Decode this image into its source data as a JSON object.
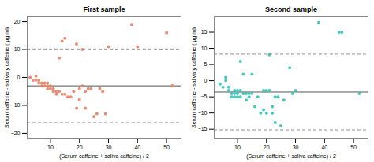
{
  "chart_data": [
    {
      "type": "scatter",
      "title": "First sample",
      "xlabel": "(Serum caffeine + saliva caffeine) / 2",
      "ylabel": "Serum caffeine - salivary caffeine ( µg ml)",
      "color": "#e0846a",
      "x": [
        3,
        4,
        5,
        5,
        6,
        6,
        7,
        7,
        8,
        8,
        9,
        9,
        9,
        10,
        10,
        11,
        11,
        12,
        12,
        13,
        13,
        14,
        14,
        15,
        15,
        16,
        17,
        18,
        19,
        19,
        20,
        20,
        21,
        21,
        22,
        22,
        23,
        24,
        25,
        26,
        27,
        28,
        29,
        30,
        38,
        40,
        50,
        52,
        52
      ],
      "values": [
        0,
        -1,
        -1,
        0.5,
        -2,
        -1,
        -3,
        -2,
        -2,
        -3,
        -4,
        -3,
        -2,
        -4,
        -3,
        -5,
        -4,
        -6,
        -5,
        7,
        -5,
        13,
        -6,
        14,
        -6,
        -7,
        -7,
        -5,
        12,
        -11,
        -4,
        -8,
        -3,
        10,
        -5,
        -11,
        -4,
        -4,
        -14,
        -13,
        -4,
        -5,
        -13,
        11,
        19,
        11,
        16,
        -3,
        -3
      ],
      "hlines": [
        {
          "value": -3.0,
          "line_style": "solid"
        },
        {
          "value": 10.2,
          "line_style": "dashed"
        },
        {
          "value": -16.2,
          "line_style": "dashed"
        }
      ],
      "xlim": [
        2,
        55
      ],
      "xticks": [
        10,
        20,
        30,
        40,
        50
      ],
      "ylim": [
        -22,
        22
      ],
      "yticks": [
        -20,
        -10,
        0,
        10,
        20
      ],
      "grid": false
    },
    {
      "type": "scatter",
      "title": "Second sample",
      "xlabel": "(Serum caffeine + saliva caffeine) / 2",
      "ylabel": "Serum caffeine - salivary caffeine ( µg ml)",
      "color": "#3bbfb2",
      "x": [
        4,
        5,
        6,
        6,
        7,
        7,
        8,
        8,
        9,
        9,
        9,
        10,
        10,
        10,
        11,
        11,
        11,
        12,
        12,
        13,
        13,
        14,
        14,
        15,
        15,
        16,
        17,
        18,
        19,
        19,
        20,
        20,
        21,
        21,
        22,
        22,
        23,
        23,
        24,
        25,
        26,
        28,
        29,
        30,
        38,
        45,
        46,
        52
      ],
      "values": [
        -1,
        -2,
        1,
        0,
        -2,
        -3,
        -4,
        -5,
        -3,
        -4,
        -5,
        -3,
        -4,
        -5,
        6,
        -3,
        -5,
        2,
        -4,
        -4,
        -6,
        -5,
        -4,
        2,
        -4,
        -8,
        -5,
        -10,
        -3,
        -9,
        -3,
        -10,
        -3,
        8,
        -8,
        -10,
        -5,
        -13,
        -5,
        -14,
        -6,
        4,
        -4,
        -3,
        18,
        15,
        15,
        -4
      ],
      "hlines": [
        {
          "value": -3.5,
          "line_style": "solid"
        },
        {
          "value": 8.2,
          "line_style": "dashed"
        },
        {
          "value": -15.2,
          "line_style": "dashed"
        }
      ],
      "xlim": [
        2,
        55
      ],
      "xticks": [
        10,
        20,
        30,
        40,
        50
      ],
      "ylim": [
        -18,
        20
      ],
      "yticks": [
        -15,
        -10,
        -5,
        0,
        5,
        10,
        15
      ],
      "grid": false
    }
  ]
}
